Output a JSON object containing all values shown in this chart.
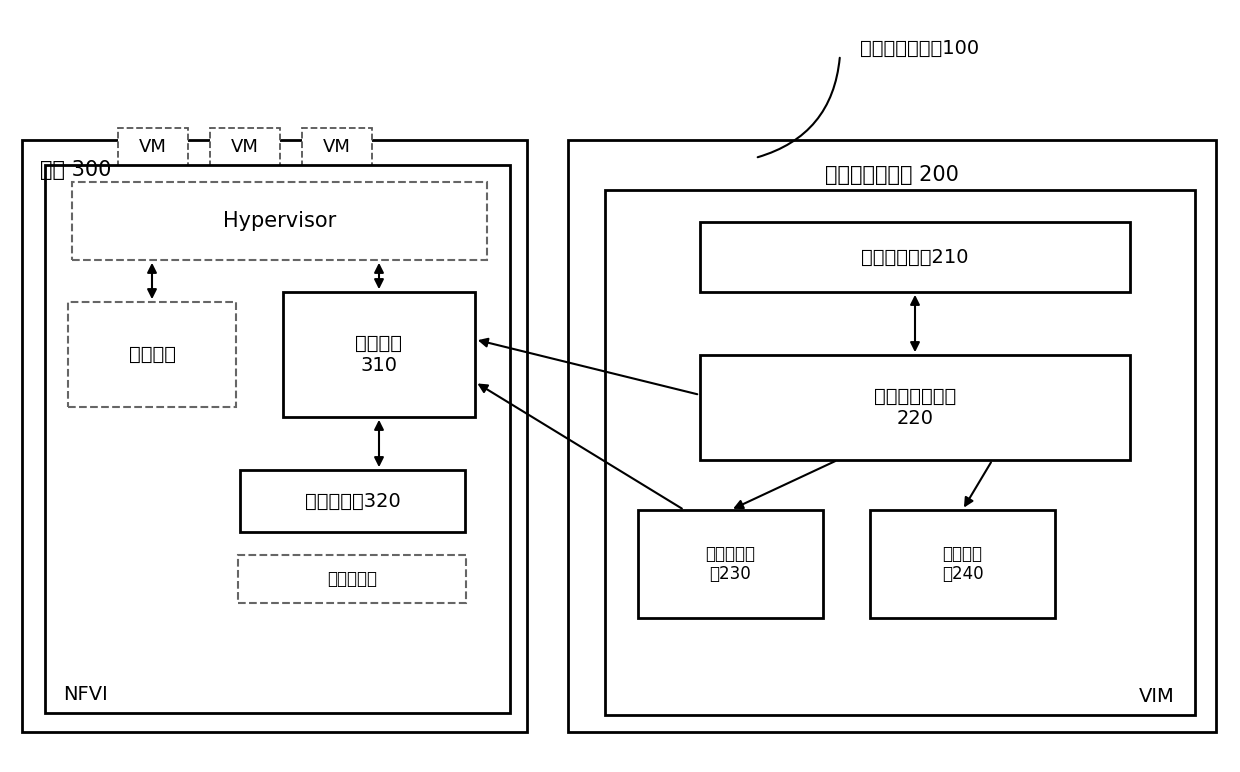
{
  "bg_color": "#ffffff",
  "title_system": "加速器加载系统100",
  "main_host_label": "主机 300",
  "main_device_label": "加速器加载装置 200",
  "nfvi_label": "NFVI",
  "vim_label": "VIM",
  "vm_labels": [
    "VM",
    "VM",
    "VM"
  ],
  "hypervisor_label": "Hypervisor",
  "compute_agent_label": "计算代理",
  "accel_agent_label": "加速代理\n310",
  "accel_driver_label": "加速器驱动320",
  "general_accel_label": "通用加速器",
  "compute_mgmt_label": "计算管理功能210",
  "accel_mgmt_ctrl_label": "加速管理控制器\n220",
  "accel_image_lib_label": "加速器镜像\n库230",
  "accel_data_lib_label": "加速数据\n库240",
  "line_color": "#000000",
  "dashed_color": "#555555",
  "font_size_large": 15,
  "font_size_med": 13,
  "font_size_small": 12,
  "font_size_label": 14
}
